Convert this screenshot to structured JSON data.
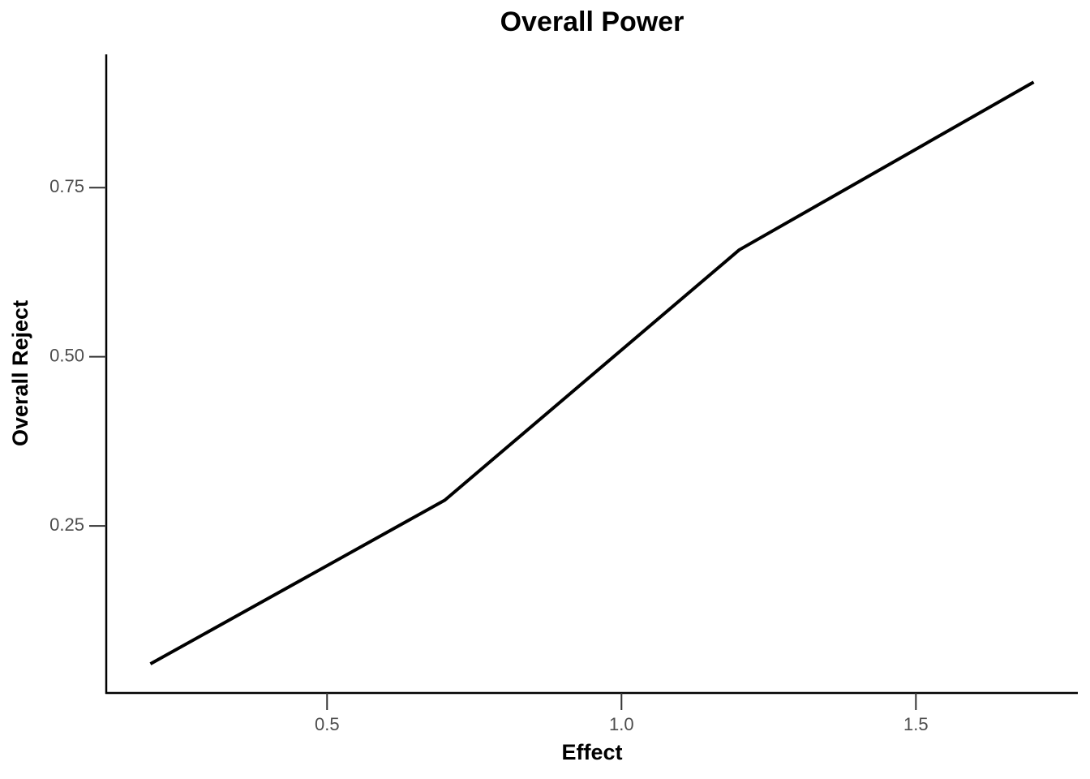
{
  "chart_data": {
    "type": "line",
    "title": "Overall Power",
    "x_label": "Effect",
    "y_label": "Overall Reject",
    "x": [
      0.2,
      0.7,
      1.2,
      1.7
    ],
    "series": [
      {
        "name": "Overall Reject",
        "color": "#000000",
        "values": [
          0.046,
          0.288,
          0.658,
          0.906
        ]
      }
    ],
    "xlim": [
      0.125,
      1.775
    ],
    "xticks": [
      {
        "value": 0.5,
        "label": "0.5"
      },
      {
        "value": 1.0,
        "label": "1.0"
      },
      {
        "value": 1.5,
        "label": "1.5"
      }
    ],
    "ylim": [
      0.003,
      0.947
    ],
    "yticks": [
      {
        "value": 0.25,
        "label": "0.25"
      },
      {
        "value": 0.5,
        "label": "0.50"
      },
      {
        "value": 0.75,
        "label": "0.75"
      }
    ],
    "grid": false
  }
}
